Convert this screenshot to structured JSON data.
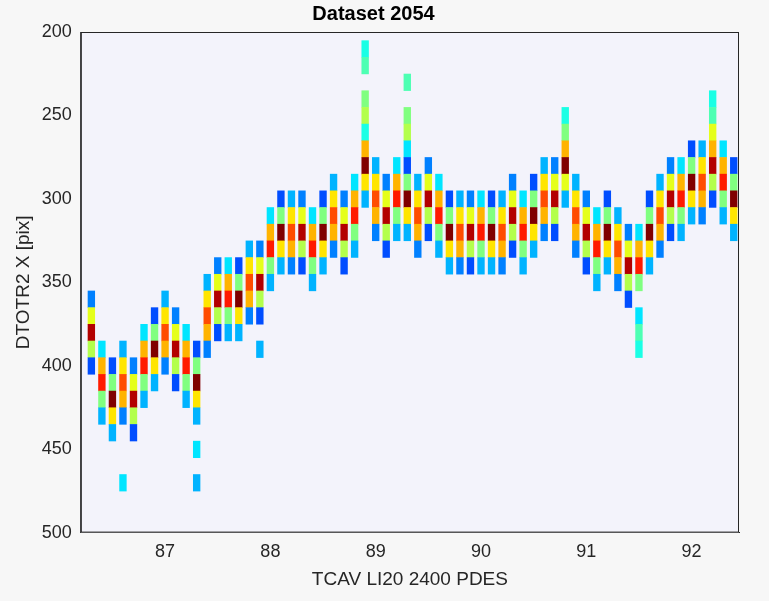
{
  "chart_data": {
    "type": "heatmap",
    "title": "Dataset 2054",
    "x_label": "TCAV LI20 2400 PDES",
    "y_label": "DTOTR2 X [pix]",
    "xlim": [
      86.2,
      92.45
    ],
    "ylim": [
      500,
      200
    ],
    "xticks": [
      87,
      88,
      89,
      90,
      91,
      92
    ],
    "yticks": [
      200,
      250,
      300,
      350,
      400,
      450,
      500
    ],
    "clim": [
      0,
      1
    ],
    "cells": [
      [
        86.3,
        360,
        0.25
      ],
      [
        86.3,
        370,
        0.6
      ],
      [
        86.3,
        380,
        0.95
      ],
      [
        86.3,
        390,
        0.55
      ],
      [
        86.3,
        400,
        0.2
      ],
      [
        86.4,
        390,
        0.35
      ],
      [
        86.4,
        400,
        0.7
      ],
      [
        86.4,
        410,
        0.85
      ],
      [
        86.4,
        420,
        0.5
      ],
      [
        86.4,
        430,
        0.3
      ],
      [
        86.5,
        400,
        0.2
      ],
      [
        86.5,
        410,
        0.5
      ],
      [
        86.5,
        420,
        1.0
      ],
      [
        86.5,
        430,
        0.65
      ],
      [
        86.5,
        440,
        0.3
      ],
      [
        86.6,
        390,
        0.3
      ],
      [
        86.6,
        400,
        0.65
      ],
      [
        86.6,
        410,
        0.8
      ],
      [
        86.6,
        420,
        0.7
      ],
      [
        86.6,
        430,
        0.25
      ],
      [
        86.6,
        470,
        0.35
      ],
      [
        86.7,
        400,
        0.25
      ],
      [
        86.7,
        410,
        0.6
      ],
      [
        86.7,
        420,
        0.95
      ],
      [
        86.7,
        430,
        0.55
      ],
      [
        86.7,
        440,
        0.2
      ],
      [
        86.8,
        380,
        0.35
      ],
      [
        86.8,
        390,
        0.7
      ],
      [
        86.8,
        400,
        0.85
      ],
      [
        86.8,
        410,
        0.5
      ],
      [
        86.8,
        420,
        0.3
      ],
      [
        86.9,
        370,
        0.2
      ],
      [
        86.9,
        380,
        0.5
      ],
      [
        86.9,
        390,
        1.0
      ],
      [
        86.9,
        400,
        0.65
      ],
      [
        86.9,
        410,
        0.3
      ],
      [
        87.0,
        360,
        0.3
      ],
      [
        87.0,
        370,
        0.65
      ],
      [
        87.0,
        380,
        0.8
      ],
      [
        87.0,
        390,
        0.7
      ],
      [
        87.0,
        400,
        0.25
      ],
      [
        87.1,
        370,
        0.25
      ],
      [
        87.1,
        380,
        0.6
      ],
      [
        87.1,
        390,
        0.95
      ],
      [
        87.1,
        400,
        0.55
      ],
      [
        87.1,
        410,
        0.2
      ],
      [
        87.2,
        380,
        0.35
      ],
      [
        87.2,
        390,
        0.7
      ],
      [
        87.2,
        400,
        0.85
      ],
      [
        87.2,
        410,
        0.5
      ],
      [
        87.2,
        420,
        0.3
      ],
      [
        87.3,
        390,
        0.2
      ],
      [
        87.3,
        400,
        0.5
      ],
      [
        87.3,
        410,
        1.0
      ],
      [
        87.3,
        420,
        0.65
      ],
      [
        87.3,
        430,
        0.3
      ],
      [
        87.3,
        450,
        0.35
      ],
      [
        87.3,
        470,
        0.3
      ],
      [
        87.4,
        350,
        0.3
      ],
      [
        87.4,
        360,
        0.65
      ],
      [
        87.4,
        370,
        0.8
      ],
      [
        87.4,
        380,
        0.7
      ],
      [
        87.4,
        390,
        0.25
      ],
      [
        87.5,
        340,
        0.25
      ],
      [
        87.5,
        350,
        0.6
      ],
      [
        87.5,
        360,
        0.95
      ],
      [
        87.5,
        370,
        0.55
      ],
      [
        87.5,
        380,
        0.2
      ],
      [
        87.6,
        340,
        0.35
      ],
      [
        87.6,
        350,
        0.7
      ],
      [
        87.6,
        360,
        0.85
      ],
      [
        87.6,
        370,
        0.5
      ],
      [
        87.6,
        380,
        0.3
      ],
      [
        87.7,
        340,
        0.2
      ],
      [
        87.7,
        350,
        0.5
      ],
      [
        87.7,
        360,
        1.0
      ],
      [
        87.7,
        370,
        0.65
      ],
      [
        87.7,
        380,
        0.3
      ],
      [
        87.8,
        330,
        0.3
      ],
      [
        87.8,
        340,
        0.65
      ],
      [
        87.8,
        350,
        0.8
      ],
      [
        87.8,
        360,
        0.7
      ],
      [
        87.8,
        370,
        0.25
      ],
      [
        87.9,
        330,
        0.25
      ],
      [
        87.9,
        340,
        0.6
      ],
      [
        87.9,
        350,
        0.95
      ],
      [
        87.9,
        360,
        0.55
      ],
      [
        87.9,
        370,
        0.2
      ],
      [
        87.9,
        390,
        0.3
      ],
      [
        88.0,
        310,
        0.35
      ],
      [
        88.0,
        320,
        0.7
      ],
      [
        88.0,
        330,
        0.85
      ],
      [
        88.0,
        340,
        0.5
      ],
      [
        88.0,
        350,
        0.3
      ],
      [
        88.1,
        300,
        0.2
      ],
      [
        88.1,
        310,
        0.5
      ],
      [
        88.1,
        320,
        1.0
      ],
      [
        88.1,
        330,
        0.65
      ],
      [
        88.1,
        340,
        0.3
      ],
      [
        88.2,
        300,
        0.3
      ],
      [
        88.2,
        310,
        0.65
      ],
      [
        88.2,
        320,
        0.8
      ],
      [
        88.2,
        330,
        0.7
      ],
      [
        88.2,
        340,
        0.25
      ],
      [
        88.3,
        300,
        0.25
      ],
      [
        88.3,
        310,
        0.6
      ],
      [
        88.3,
        320,
        0.95
      ],
      [
        88.3,
        330,
        0.55
      ],
      [
        88.3,
        340,
        0.2
      ],
      [
        88.4,
        310,
        0.35
      ],
      [
        88.4,
        320,
        0.7
      ],
      [
        88.4,
        330,
        0.85
      ],
      [
        88.4,
        340,
        0.5
      ],
      [
        88.4,
        350,
        0.3
      ],
      [
        88.5,
        300,
        0.2
      ],
      [
        88.5,
        310,
        0.5
      ],
      [
        88.5,
        320,
        1.0
      ],
      [
        88.5,
        330,
        0.65
      ],
      [
        88.5,
        340,
        0.3
      ],
      [
        88.6,
        290,
        0.3
      ],
      [
        88.6,
        300,
        0.65
      ],
      [
        88.6,
        310,
        0.8
      ],
      [
        88.6,
        320,
        0.7
      ],
      [
        88.6,
        330,
        0.25
      ],
      [
        88.7,
        300,
        0.25
      ],
      [
        88.7,
        310,
        0.6
      ],
      [
        88.7,
        320,
        0.95
      ],
      [
        88.7,
        330,
        0.55
      ],
      [
        88.7,
        340,
        0.2
      ],
      [
        88.8,
        290,
        0.35
      ],
      [
        88.8,
        300,
        0.7
      ],
      [
        88.8,
        310,
        0.85
      ],
      [
        88.8,
        320,
        0.5
      ],
      [
        88.8,
        330,
        0.3
      ],
      [
        88.9,
        210,
        0.4
      ],
      [
        88.9,
        220,
        0.45
      ],
      [
        88.9,
        240,
        0.5
      ],
      [
        88.9,
        250,
        0.55
      ],
      [
        88.9,
        260,
        0.4
      ],
      [
        88.9,
        270,
        0.7
      ],
      [
        88.9,
        280,
        1.0
      ],
      [
        88.9,
        290,
        0.65
      ],
      [
        88.9,
        300,
        0.3
      ],
      [
        89.0,
        280,
        0.3
      ],
      [
        89.0,
        290,
        0.65
      ],
      [
        89.0,
        300,
        0.8
      ],
      [
        89.0,
        310,
        0.7
      ],
      [
        89.0,
        320,
        0.25
      ],
      [
        89.1,
        290,
        0.25
      ],
      [
        89.1,
        300,
        0.6
      ],
      [
        89.1,
        310,
        0.95
      ],
      [
        89.1,
        320,
        0.55
      ],
      [
        89.1,
        330,
        0.2
      ],
      [
        89.2,
        280,
        0.35
      ],
      [
        89.2,
        290,
        0.7
      ],
      [
        89.2,
        300,
        0.85
      ],
      [
        89.2,
        310,
        0.5
      ],
      [
        89.2,
        320,
        0.3
      ],
      [
        89.3,
        230,
        0.45
      ],
      [
        89.3,
        250,
        0.5
      ],
      [
        89.3,
        260,
        0.55
      ],
      [
        89.3,
        270,
        0.35
      ],
      [
        89.3,
        280,
        0.2
      ],
      [
        89.3,
        290,
        0.5
      ],
      [
        89.3,
        300,
        1.0
      ],
      [
        89.3,
        310,
        0.65
      ],
      [
        89.3,
        320,
        0.3
      ],
      [
        89.4,
        290,
        0.3
      ],
      [
        89.4,
        300,
        0.65
      ],
      [
        89.4,
        310,
        0.8
      ],
      [
        89.4,
        320,
        0.7
      ],
      [
        89.4,
        330,
        0.25
      ],
      [
        89.5,
        280,
        0.25
      ],
      [
        89.5,
        290,
        0.6
      ],
      [
        89.5,
        300,
        0.95
      ],
      [
        89.5,
        310,
        0.55
      ],
      [
        89.5,
        320,
        0.2
      ],
      [
        89.6,
        290,
        0.35
      ],
      [
        89.6,
        300,
        0.7
      ],
      [
        89.6,
        310,
        0.85
      ],
      [
        89.6,
        320,
        0.5
      ],
      [
        89.6,
        330,
        0.3
      ],
      [
        89.7,
        300,
        0.2
      ],
      [
        89.7,
        310,
        0.5
      ],
      [
        89.7,
        320,
        1.0
      ],
      [
        89.7,
        330,
        0.65
      ],
      [
        89.7,
        340,
        0.3
      ],
      [
        89.8,
        300,
        0.3
      ],
      [
        89.8,
        310,
        0.65
      ],
      [
        89.8,
        320,
        0.8
      ],
      [
        89.8,
        330,
        0.7
      ],
      [
        89.8,
        340,
        0.25
      ],
      [
        89.9,
        300,
        0.25
      ],
      [
        89.9,
        310,
        0.6
      ],
      [
        89.9,
        320,
        0.95
      ],
      [
        89.9,
        330,
        0.55
      ],
      [
        89.9,
        340,
        0.2
      ],
      [
        90.0,
        300,
        0.35
      ],
      [
        90.0,
        310,
        0.7
      ],
      [
        90.0,
        320,
        0.85
      ],
      [
        90.0,
        330,
        0.5
      ],
      [
        90.0,
        340,
        0.3
      ],
      [
        90.1,
        300,
        0.2
      ],
      [
        90.1,
        310,
        0.5
      ],
      [
        90.1,
        320,
        1.0
      ],
      [
        90.1,
        330,
        0.65
      ],
      [
        90.1,
        340,
        0.3
      ],
      [
        90.2,
        300,
        0.3
      ],
      [
        90.2,
        310,
        0.65
      ],
      [
        90.2,
        320,
        0.8
      ],
      [
        90.2,
        330,
        0.7
      ],
      [
        90.2,
        340,
        0.25
      ],
      [
        90.3,
        290,
        0.25
      ],
      [
        90.3,
        300,
        0.6
      ],
      [
        90.3,
        310,
        0.95
      ],
      [
        90.3,
        320,
        0.55
      ],
      [
        90.3,
        330,
        0.2
      ],
      [
        90.4,
        300,
        0.35
      ],
      [
        90.4,
        310,
        0.7
      ],
      [
        90.4,
        320,
        0.85
      ],
      [
        90.4,
        330,
        0.5
      ],
      [
        90.4,
        340,
        0.3
      ],
      [
        90.5,
        290,
        0.2
      ],
      [
        90.5,
        300,
        0.5
      ],
      [
        90.5,
        310,
        1.0
      ],
      [
        90.5,
        320,
        0.65
      ],
      [
        90.5,
        330,
        0.3
      ],
      [
        90.6,
        280,
        0.3
      ],
      [
        90.6,
        290,
        0.65
      ],
      [
        90.6,
        300,
        0.8
      ],
      [
        90.6,
        310,
        0.7
      ],
      [
        90.6,
        320,
        0.25
      ],
      [
        90.7,
        280,
        0.25
      ],
      [
        90.7,
        290,
        0.6
      ],
      [
        90.7,
        300,
        0.95
      ],
      [
        90.7,
        310,
        0.55
      ],
      [
        90.7,
        320,
        0.2
      ],
      [
        90.8,
        250,
        0.4
      ],
      [
        90.8,
        260,
        0.5
      ],
      [
        90.8,
        270,
        0.7
      ],
      [
        90.8,
        280,
        1.0
      ],
      [
        90.8,
        290,
        0.6
      ],
      [
        90.8,
        300,
        0.3
      ],
      [
        90.9,
        290,
        0.3
      ],
      [
        90.9,
        300,
        0.65
      ],
      [
        90.9,
        310,
        0.8
      ],
      [
        90.9,
        320,
        0.7
      ],
      [
        90.9,
        330,
        0.25
      ],
      [
        91.0,
        300,
        0.25
      ],
      [
        91.0,
        310,
        0.6
      ],
      [
        91.0,
        320,
        0.95
      ],
      [
        91.0,
        330,
        0.55
      ],
      [
        91.0,
        340,
        0.2
      ],
      [
        91.1,
        310,
        0.35
      ],
      [
        91.1,
        320,
        0.7
      ],
      [
        91.1,
        330,
        0.85
      ],
      [
        91.1,
        340,
        0.5
      ],
      [
        91.1,
        350,
        0.3
      ],
      [
        91.2,
        300,
        0.2
      ],
      [
        91.2,
        310,
        0.5
      ],
      [
        91.2,
        320,
        1.0
      ],
      [
        91.2,
        330,
        0.65
      ],
      [
        91.2,
        340,
        0.3
      ],
      [
        91.3,
        310,
        0.3
      ],
      [
        91.3,
        320,
        0.65
      ],
      [
        91.3,
        330,
        0.8
      ],
      [
        91.3,
        340,
        0.7
      ],
      [
        91.3,
        350,
        0.25
      ],
      [
        91.4,
        320,
        0.25
      ],
      [
        91.4,
        330,
        0.6
      ],
      [
        91.4,
        340,
        0.95
      ],
      [
        91.4,
        350,
        0.55
      ],
      [
        91.4,
        360,
        0.2
      ],
      [
        91.5,
        320,
        0.35
      ],
      [
        91.5,
        330,
        0.7
      ],
      [
        91.5,
        340,
        0.85
      ],
      [
        91.5,
        350,
        0.5
      ],
      [
        91.5,
        370,
        0.35
      ],
      [
        91.5,
        380,
        0.45
      ],
      [
        91.5,
        390,
        0.4
      ],
      [
        91.6,
        300,
        0.2
      ],
      [
        91.6,
        310,
        0.5
      ],
      [
        91.6,
        320,
        1.0
      ],
      [
        91.6,
        330,
        0.65
      ],
      [
        91.6,
        340,
        0.3
      ],
      [
        91.7,
        290,
        0.3
      ],
      [
        91.7,
        300,
        0.65
      ],
      [
        91.7,
        310,
        0.8
      ],
      [
        91.7,
        320,
        0.7
      ],
      [
        91.7,
        330,
        0.25
      ],
      [
        91.8,
        280,
        0.25
      ],
      [
        91.8,
        290,
        0.6
      ],
      [
        91.8,
        300,
        0.95
      ],
      [
        91.8,
        310,
        0.55
      ],
      [
        91.8,
        320,
        0.2
      ],
      [
        91.9,
        280,
        0.35
      ],
      [
        91.9,
        290,
        0.7
      ],
      [
        91.9,
        300,
        0.85
      ],
      [
        91.9,
        310,
        0.5
      ],
      [
        91.9,
        320,
        0.3
      ],
      [
        92.0,
        270,
        0.2
      ],
      [
        92.0,
        280,
        0.5
      ],
      [
        92.0,
        290,
        1.0
      ],
      [
        92.0,
        300,
        0.65
      ],
      [
        92.0,
        310,
        0.3
      ],
      [
        92.1,
        270,
        0.3
      ],
      [
        92.1,
        280,
        0.65
      ],
      [
        92.1,
        290,
        0.8
      ],
      [
        92.1,
        300,
        0.7
      ],
      [
        92.1,
        310,
        0.25
      ],
      [
        92.2,
        240,
        0.4
      ],
      [
        92.2,
        250,
        0.45
      ],
      [
        92.2,
        260,
        0.6
      ],
      [
        92.2,
        270,
        0.7
      ],
      [
        92.2,
        280,
        0.95
      ],
      [
        92.2,
        290,
        0.55
      ],
      [
        92.2,
        300,
        0.2
      ],
      [
        92.3,
        270,
        0.35
      ],
      [
        92.3,
        280,
        0.7
      ],
      [
        92.3,
        290,
        0.85
      ],
      [
        92.3,
        300,
        0.5
      ],
      [
        92.3,
        310,
        0.3
      ],
      [
        92.4,
        280,
        0.2
      ],
      [
        92.4,
        290,
        0.5
      ],
      [
        92.4,
        300,
        1.0
      ],
      [
        92.4,
        310,
        0.65
      ],
      [
        92.4,
        320,
        0.3
      ]
    ]
  }
}
